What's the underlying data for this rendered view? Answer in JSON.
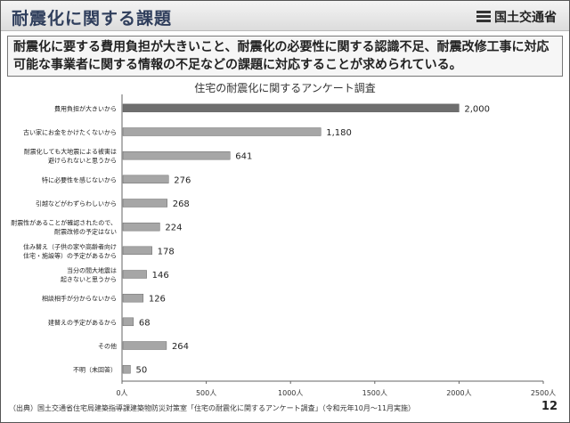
{
  "header": {
    "title": "耐震化に関する課題",
    "ministry": "国土交通省"
  },
  "summary": "耐震化に要する費用負担が大きいこと、耐震化の必要性に関する認識不足、耐震改修工事に対応可能な事業者に関する情報の不足などの課題に対応することが求められている。",
  "source": "（出典）国土交通省住宅局建築指導課建築物防災対策室「住宅の耐震化に関するアンケート調査」（令和元年10月～11月実施）",
  "page_number": "12",
  "chart_data": {
    "type": "bar",
    "orientation": "horizontal",
    "title": "住宅の耐震化に関するアンケート調査",
    "categories": [
      [
        "費用負担が大きいから"
      ],
      [
        "古い家にお金をかけたくないから"
      ],
      [
        "耐震化しても大地震による被害は",
        "避けられないと思うから"
      ],
      [
        "特に必要性を感じないから"
      ],
      [
        "引越などがわずらわしいから"
      ],
      [
        "耐震性があることが確認されたので、",
        "耐震改修の予定はない"
      ],
      [
        "住み替え（子供の家や高齢者向け",
        "住宅・施設等）の予定があるから"
      ],
      [
        "当分の間大地震は",
        "起きないと思うから"
      ],
      [
        "相談相手が分からないから"
      ],
      [
        "建替えの予定があるから"
      ],
      [
        "その他"
      ],
      [
        "不明（未回答）"
      ]
    ],
    "values": [
      2000,
      1180,
      641,
      276,
      268,
      224,
      178,
      146,
      126,
      68,
      264,
      50
    ],
    "value_labels": [
      "2,000",
      "1,180",
      "641",
      "276",
      "268",
      "224",
      "178",
      "146",
      "126",
      "68",
      "264",
      "50"
    ],
    "xlim": [
      0,
      2500
    ],
    "xticks": [
      0,
      500,
      1000,
      1500,
      2000,
      2500
    ],
    "xtick_labels": [
      "0人",
      "500人",
      "1000人",
      "1500人",
      "2000人",
      "2500人"
    ],
    "highlight_color": "#6e6e6e",
    "bar_color": "#a6a6a6",
    "grid": false
  }
}
